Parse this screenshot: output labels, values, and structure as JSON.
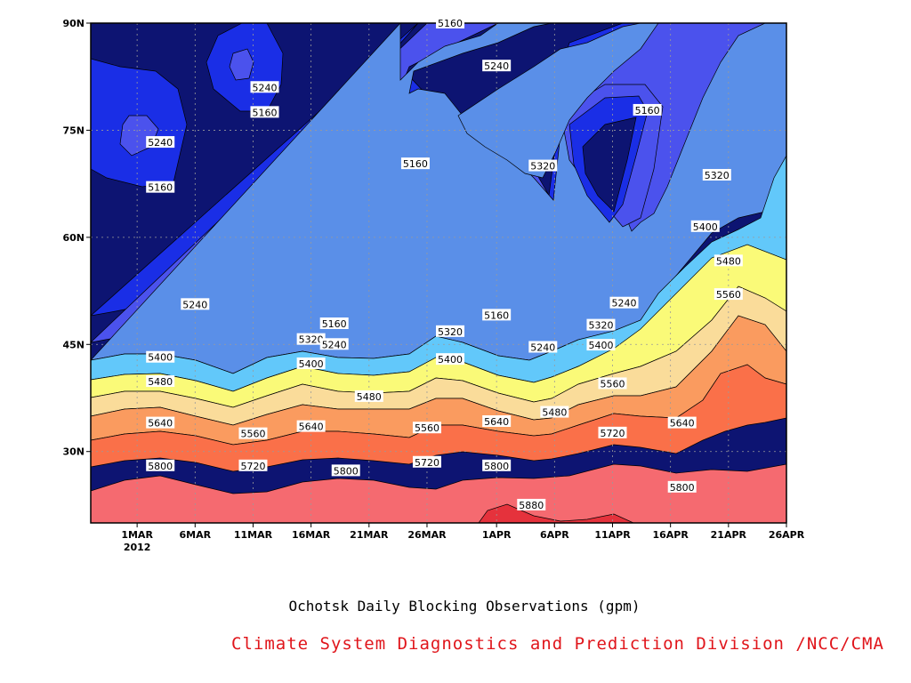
{
  "chart_data": {
    "type": "contour",
    "title": "Ochotsk Daily Blocking Observations (gpm)",
    "subtitle": "Climate System Diagnostics and Prediction Division /NCC/CMA",
    "x_ticks": [
      "1MAR",
      "6MAR",
      "11MAR",
      "16MAR",
      "21MAR",
      "26MAR",
      "1APR",
      "6APR",
      "11APR",
      "16APR",
      "21APR",
      "26APR"
    ],
    "x_year_label": "2012",
    "x_range": [
      "2012-02-26",
      "2012-04-26"
    ],
    "y_ticks": [
      "30N",
      "45N",
      "60N",
      "75N",
      "90N"
    ],
    "y_range": [
      20,
      90
    ],
    "grid": true,
    "contour_levels": [
      5160,
      5240,
      5320,
      5400,
      5480,
      5560,
      5640,
      5720,
      5800,
      5880
    ],
    "fill_colors": [
      "#0d1472",
      "#1a2ee6",
      "#4b52ed",
      "#5a8fe8",
      "#62c8fa",
      "#fafa78",
      "#fadc9a",
      "#fa9b5f",
      "#fa7049",
      "#f56a70",
      "#e5323c"
    ],
    "contour_labels": [
      {
        "date": "2012-03-28",
        "lat": 90.0,
        "value": 5160
      },
      {
        "date": "2012-04-01",
        "lat": 84.0,
        "value": 5240
      },
      {
        "date": "2012-03-12",
        "lat": 81.0,
        "value": 5240
      },
      {
        "date": "2012-03-12",
        "lat": 77.5,
        "value": 5160
      },
      {
        "date": "2012-04-14",
        "lat": 77.8,
        "value": 5160
      },
      {
        "date": "2012-03-03",
        "lat": 73.3,
        "value": 5240
      },
      {
        "date": "2012-03-25",
        "lat": 70.3,
        "value": 5160
      },
      {
        "date": "2012-04-05",
        "lat": 70.0,
        "value": 5320
      },
      {
        "date": "2012-03-03",
        "lat": 67.0,
        "value": 5160
      },
      {
        "date": "2012-04-20",
        "lat": 68.7,
        "value": 5320
      },
      {
        "date": "2012-04-19",
        "lat": 61.5,
        "value": 5400
      },
      {
        "date": "2012-04-21",
        "lat": 56.7,
        "value": 5480
      },
      {
        "date": "2012-04-21",
        "lat": 52.0,
        "value": 5560
      },
      {
        "date": "2012-03-06",
        "lat": 50.6,
        "value": 5240
      },
      {
        "date": "2012-04-12",
        "lat": 50.8,
        "value": 5240
      },
      {
        "date": "2012-04-01",
        "lat": 49.1,
        "value": 5160
      },
      {
        "date": "2012-03-18",
        "lat": 47.9,
        "value": 5160
      },
      {
        "date": "2012-04-10",
        "lat": 47.7,
        "value": 5320
      },
      {
        "date": "2012-03-28",
        "lat": 46.8,
        "value": 5320
      },
      {
        "date": "2012-03-16",
        "lat": 45.7,
        "value": 5320
      },
      {
        "date": "2012-03-18",
        "lat": 45.0,
        "value": 5240
      },
      {
        "date": "2012-04-10",
        "lat": 44.9,
        "value": 5400
      },
      {
        "date": "2012-04-05",
        "lat": 44.6,
        "value": 5240
      },
      {
        "date": "2012-03-03",
        "lat": 43.2,
        "value": 5400
      },
      {
        "date": "2012-03-28",
        "lat": 42.9,
        "value": 5400
      },
      {
        "date": "2012-03-16",
        "lat": 42.3,
        "value": 5400
      },
      {
        "date": "2012-03-03",
        "lat": 39.8,
        "value": 5480
      },
      {
        "date": "2012-04-11",
        "lat": 39.5,
        "value": 5560
      },
      {
        "date": "2012-03-21",
        "lat": 37.7,
        "value": 5480
      },
      {
        "date": "2012-04-06",
        "lat": 35.5,
        "value": 5480
      },
      {
        "date": "2012-03-03",
        "lat": 34.0,
        "value": 5640
      },
      {
        "date": "2012-04-01",
        "lat": 34.2,
        "value": 5640
      },
      {
        "date": "2012-04-17",
        "lat": 34.0,
        "value": 5640
      },
      {
        "date": "2012-03-16",
        "lat": 33.5,
        "value": 5640
      },
      {
        "date": "2012-03-26",
        "lat": 33.3,
        "value": 5560
      },
      {
        "date": "2012-03-11",
        "lat": 32.5,
        "value": 5560
      },
      {
        "date": "2012-04-11",
        "lat": 32.6,
        "value": 5720
      },
      {
        "date": "2012-03-03",
        "lat": 28.0,
        "value": 5800
      },
      {
        "date": "2012-03-11",
        "lat": 28.0,
        "value": 5720
      },
      {
        "date": "2012-03-26",
        "lat": 28.5,
        "value": 5720
      },
      {
        "date": "2012-04-01",
        "lat": 28.0,
        "value": 5800
      },
      {
        "date": "2012-03-19",
        "lat": 27.3,
        "value": 5800
      },
      {
        "date": "2012-04-17",
        "lat": 25.0,
        "value": 5800
      },
      {
        "date": "2012-04-04",
        "lat": 22.5,
        "value": 5880
      }
    ]
  }
}
